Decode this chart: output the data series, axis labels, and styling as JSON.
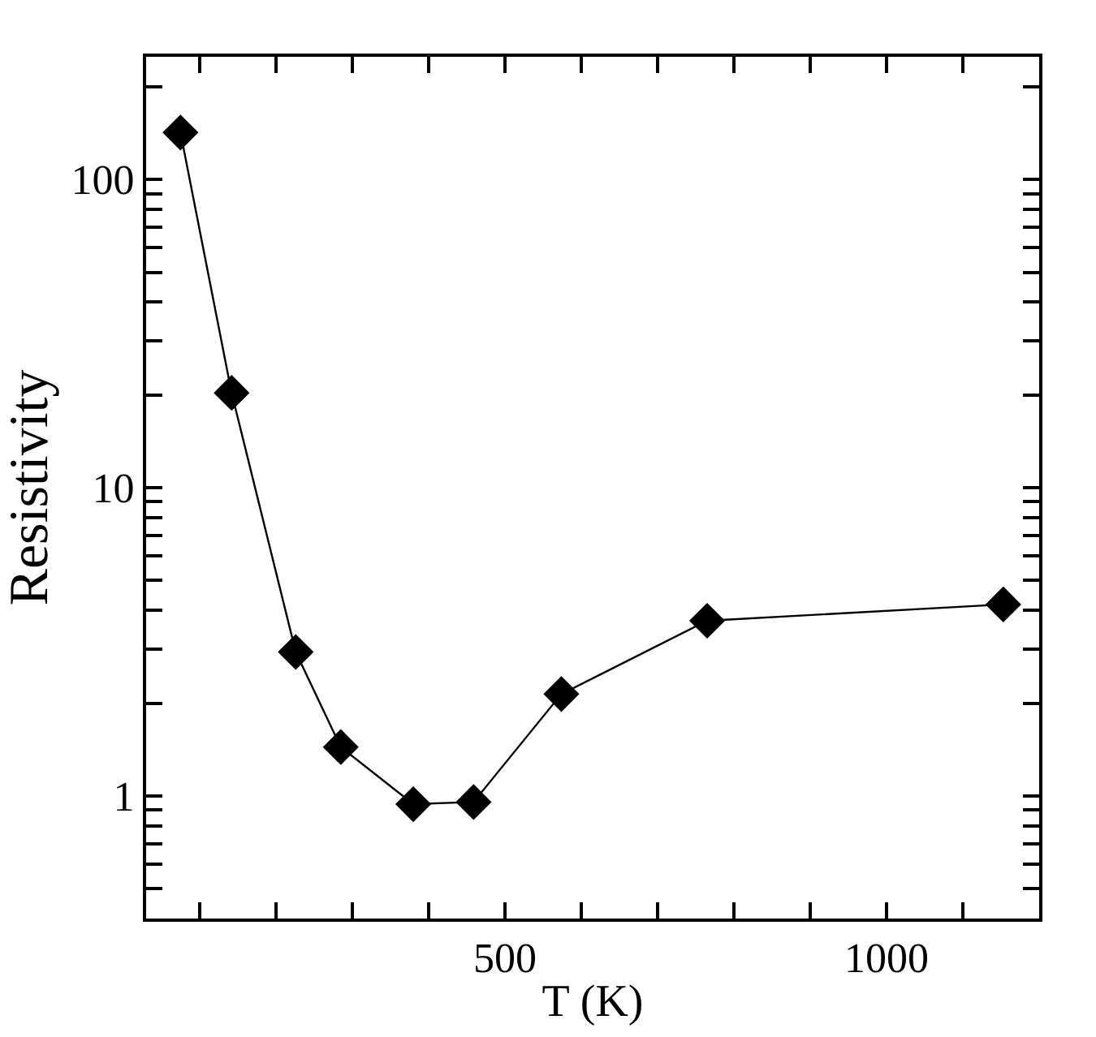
{
  "chart_data": {
    "type": "line",
    "xlabel": "T (K)",
    "ylabel": "Resistivity",
    "x": [
      75,
      142,
      226,
      285,
      380,
      459,
      574,
      765,
      1153
    ],
    "series": [
      {
        "color": "#000000",
        "values": [
          142,
          20.3,
          2.93,
          1.44,
          0.94,
          0.955,
          2.14,
          3.7,
          4.18
        ]
      }
    ],
    "xlim": [
      30,
      1200
    ],
    "xticks": [
      {
        "value": 100,
        "label": null
      },
      {
        "value": 200,
        "label": null
      },
      {
        "value": 300,
        "label": null
      },
      {
        "value": 400,
        "label": null
      },
      500,
      {
        "value": 600,
        "label": null
      },
      {
        "value": 700,
        "label": null
      },
      {
        "value": 800,
        "label": null
      },
      {
        "value": 900,
        "label": null
      },
      1000,
      {
        "value": 1100,
        "label": null
      }
    ],
    "ylim": [
      0.4,
      250
    ],
    "yticks": [
      {
        "value": 0.5,
        "label": null
      },
      {
        "value": 0.6,
        "label": null
      },
      {
        "value": 0.7,
        "label": null
      },
      {
        "value": 0.8,
        "label": null
      },
      {
        "value": 0.9,
        "label": null
      },
      1,
      {
        "value": 2,
        "label": null
      },
      {
        "value": 3,
        "label": null
      },
      {
        "value": 4,
        "label": null
      },
      {
        "value": 5,
        "label": null
      },
      {
        "value": 6,
        "label": null
      },
      {
        "value": 7,
        "label": null
      },
      {
        "value": 8,
        "label": null
      },
      {
        "value": 9,
        "label": null
      },
      10,
      {
        "value": 20,
        "label": null
      },
      {
        "value": 30,
        "label": null
      },
      {
        "value": 40,
        "label": null
      },
      {
        "value": 50,
        "label": null
      },
      {
        "value": 60,
        "label": null
      },
      {
        "value": 70,
        "label": null
      },
      {
        "value": 80,
        "label": null
      },
      {
        "value": 90,
        "label": null
      },
      100,
      {
        "value": 200,
        "label": null
      }
    ],
    "log": "y",
    "marker": "diamond",
    "line_style": "solid"
  }
}
